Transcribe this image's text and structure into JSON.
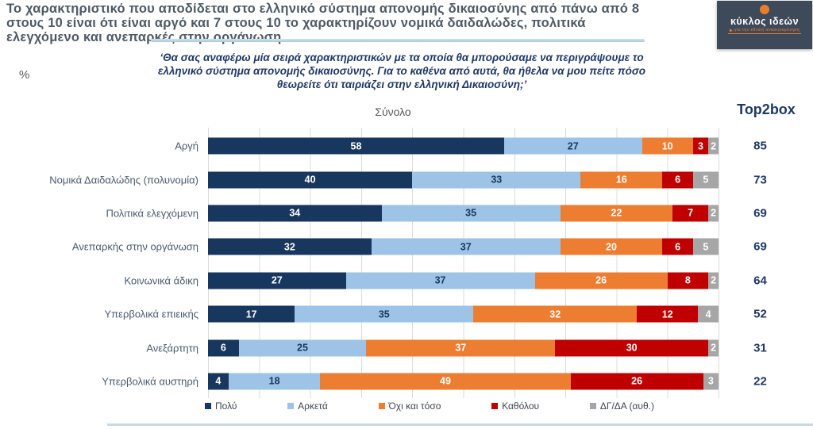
{
  "header": {
    "title_lines": [
      "Το χαρακτηριστικό που αποδίδεται στο ελληνικό σύστημα απονομής δικαιοσύνης από πάνω από 8",
      "στους 10 είναι ότι είναι αργό και 7 στους 10 το χαρακτηρίζουν νομικά δαιδαλώδες, πολιτικά",
      "ελεγχόμενο και ανεπαρκές στην οργάνωση"
    ],
    "logo": {
      "name": "κύκλος ιδεών",
      "tagline": "για την εθνική ανασυγκρότηση"
    }
  },
  "question_lines": [
    "‘Θα σας αναφέρω μία σειρά χαρακτηριστικών με τα οποία θα μπορούσαμε να περιγράψουμε το",
    "ελληνικό σύστημα απονομής δικαιοσύνης. Για το καθένα από αυτά, θα ήθελα να μου πείτε πόσο",
    "θεωρείτε ότι ταιριάζει στην ελληνική Δικαιοσύνη;’"
  ],
  "chart_header": {
    "unit": "%",
    "column": "Σύνολο",
    "top2box": "Top2box"
  },
  "chart_data": {
    "type": "bar",
    "orientation": "horizontal",
    "stacked": true,
    "xlim": [
      0,
      100
    ],
    "unit": "%",
    "grid": true,
    "legend_position": "bottom",
    "categories": [
      "Αργή",
      "Νομικά Δαιδαλώδης (πολυνομία)",
      "Πολιτικά ελεγχόμενη",
      "Ανεπαρκής στην οργάνωση",
      "Κοινωνικά άδικη",
      "Υπερβολικά επιεικής",
      "Ανεξάρτητη",
      "Υπερβολικά αυστηρή"
    ],
    "series": [
      {
        "key": "poly",
        "name": "Πολύ",
        "color": "#17375e",
        "label_color": "#ffffff",
        "values": [
          58,
          40,
          34,
          32,
          27,
          17,
          6,
          4
        ]
      },
      {
        "key": "arketa",
        "name": "Αρκετά",
        "color": "#9dc3e6",
        "label_color": "#17375e",
        "values": [
          27,
          33,
          35,
          37,
          37,
          35,
          25,
          18
        ]
      },
      {
        "key": "oxi-kai-toso",
        "name": "Όχι και τόσο",
        "color": "#ed7d31",
        "label_color": "#ffffff",
        "values": [
          10,
          16,
          22,
          20,
          26,
          32,
          37,
          49
        ]
      },
      {
        "key": "katholou",
        "name": "Καθόλου",
        "color": "#c00000",
        "label_color": "#ffffff",
        "values": [
          3,
          6,
          7,
          6,
          8,
          12,
          30,
          26
        ]
      },
      {
        "key": "dg-da",
        "name": "ΔΓ/ΔΑ (αυθ.)",
        "color": "#a6a6a6",
        "label_color": "#ffffff",
        "values": [
          2,
          5,
          2,
          5,
          2,
          4,
          2,
          3
        ]
      }
    ],
    "top2box": [
      85,
      73,
      69,
      69,
      64,
      52,
      31,
      22
    ]
  }
}
